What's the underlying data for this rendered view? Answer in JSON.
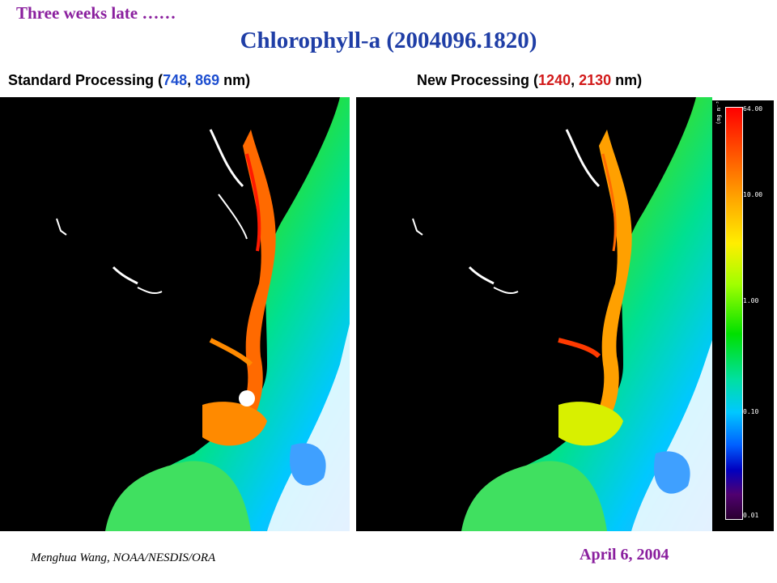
{
  "header": {
    "note": "Three weeks late ……",
    "title": "Chlorophyll-a (2004096.1820)"
  },
  "panels": {
    "left": {
      "prefix": "Standard Processing (",
      "band1": "748",
      "separator": ", ",
      "band2": "869",
      "suffix": " nm)"
    },
    "right": {
      "prefix": "New Processing (",
      "band1": "1240",
      "separator": ", ",
      "band2": "2130",
      "suffix": " nm)"
    }
  },
  "colorbar": {
    "unit": "(mg m⁻³)",
    "ticks": [
      "64.00",
      "10.00",
      "1.00",
      "0.10",
      "0.01"
    ]
  },
  "footer": {
    "author": "Menghua Wang, NOAA/NESDIS/ORA",
    "date": "April 6, 2004"
  },
  "colors": {
    "note": "#8a1f9e",
    "title": "#1f3ea6",
    "band_blue": "#1e4fd0",
    "band_red": "#d21a1a"
  }
}
